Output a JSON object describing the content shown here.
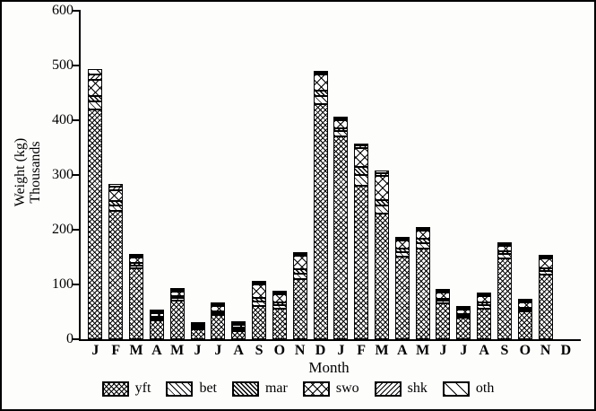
{
  "figure": {
    "ylabel_line1": "Weight (kg)",
    "ylabel_line2": "Thousands"
  },
  "chart_data": {
    "type": "bar",
    "stacked": true,
    "title": "",
    "xlabel": "Month",
    "ylabel": "Weight (kg) Thousands",
    "ylim": [
      0,
      600
    ],
    "yticks": [
      0,
      100,
      200,
      300,
      400,
      500,
      600
    ],
    "grid": false,
    "legend_position": "bottom",
    "categories": [
      "J",
      "F",
      "M",
      "A",
      "M",
      "J",
      "J",
      "A",
      "S",
      "O",
      "N",
      "D",
      "J",
      "F",
      "M",
      "A",
      "M",
      "J",
      "J",
      "A",
      "S",
      "O",
      "N",
      "D"
    ],
    "series": [
      {
        "name": "yft",
        "values": [
          420,
          235,
          130,
          35,
          70,
          18,
          45,
          15,
          60,
          55,
          110,
          430,
          370,
          280,
          230,
          150,
          165,
          65,
          40,
          55,
          148,
          50,
          118,
          0
        ]
      },
      {
        "name": "bet",
        "values": [
          15,
          10,
          5,
          3,
          5,
          2,
          4,
          2,
          8,
          6,
          10,
          15,
          10,
          20,
          15,
          8,
          10,
          5,
          4,
          6,
          8,
          4,
          6,
          0
        ]
      },
      {
        "name": "mar",
        "values": [
          10,
          8,
          5,
          2,
          3,
          1,
          3,
          1,
          7,
          5,
          8,
          10,
          5,
          15,
          10,
          7,
          8,
          4,
          3,
          5,
          5,
          3,
          5,
          0
        ]
      },
      {
        "name": "swo",
        "values": [
          30,
          20,
          10,
          7,
          8,
          3,
          10,
          5,
          25,
          15,
          25,
          30,
          15,
          35,
          45,
          15,
          15,
          12,
          8,
          12,
          10,
          10,
          18,
          0
        ]
      },
      {
        "name": "shk",
        "values": [
          10,
          7,
          3,
          2,
          2,
          1,
          2,
          1,
          3,
          4,
          3,
          3,
          3,
          5,
          5,
          3,
          4,
          3,
          3,
          4,
          4,
          3,
          3,
          0
        ]
      },
      {
        "name": "oth",
        "values": [
          10,
          5,
          2,
          1,
          2,
          0,
          1,
          1,
          2,
          3,
          2,
          2,
          2,
          3,
          5,
          2,
          3,
          3,
          2,
          3,
          3,
          2,
          3,
          0
        ]
      }
    ],
    "totals": [
      495,
      285,
      155,
      50,
      90,
      25,
      65,
      25,
      105,
      88,
      158,
      490,
      405,
      358,
      310,
      185,
      205,
      92,
      60,
      85,
      178,
      72,
      153,
      0
    ]
  }
}
